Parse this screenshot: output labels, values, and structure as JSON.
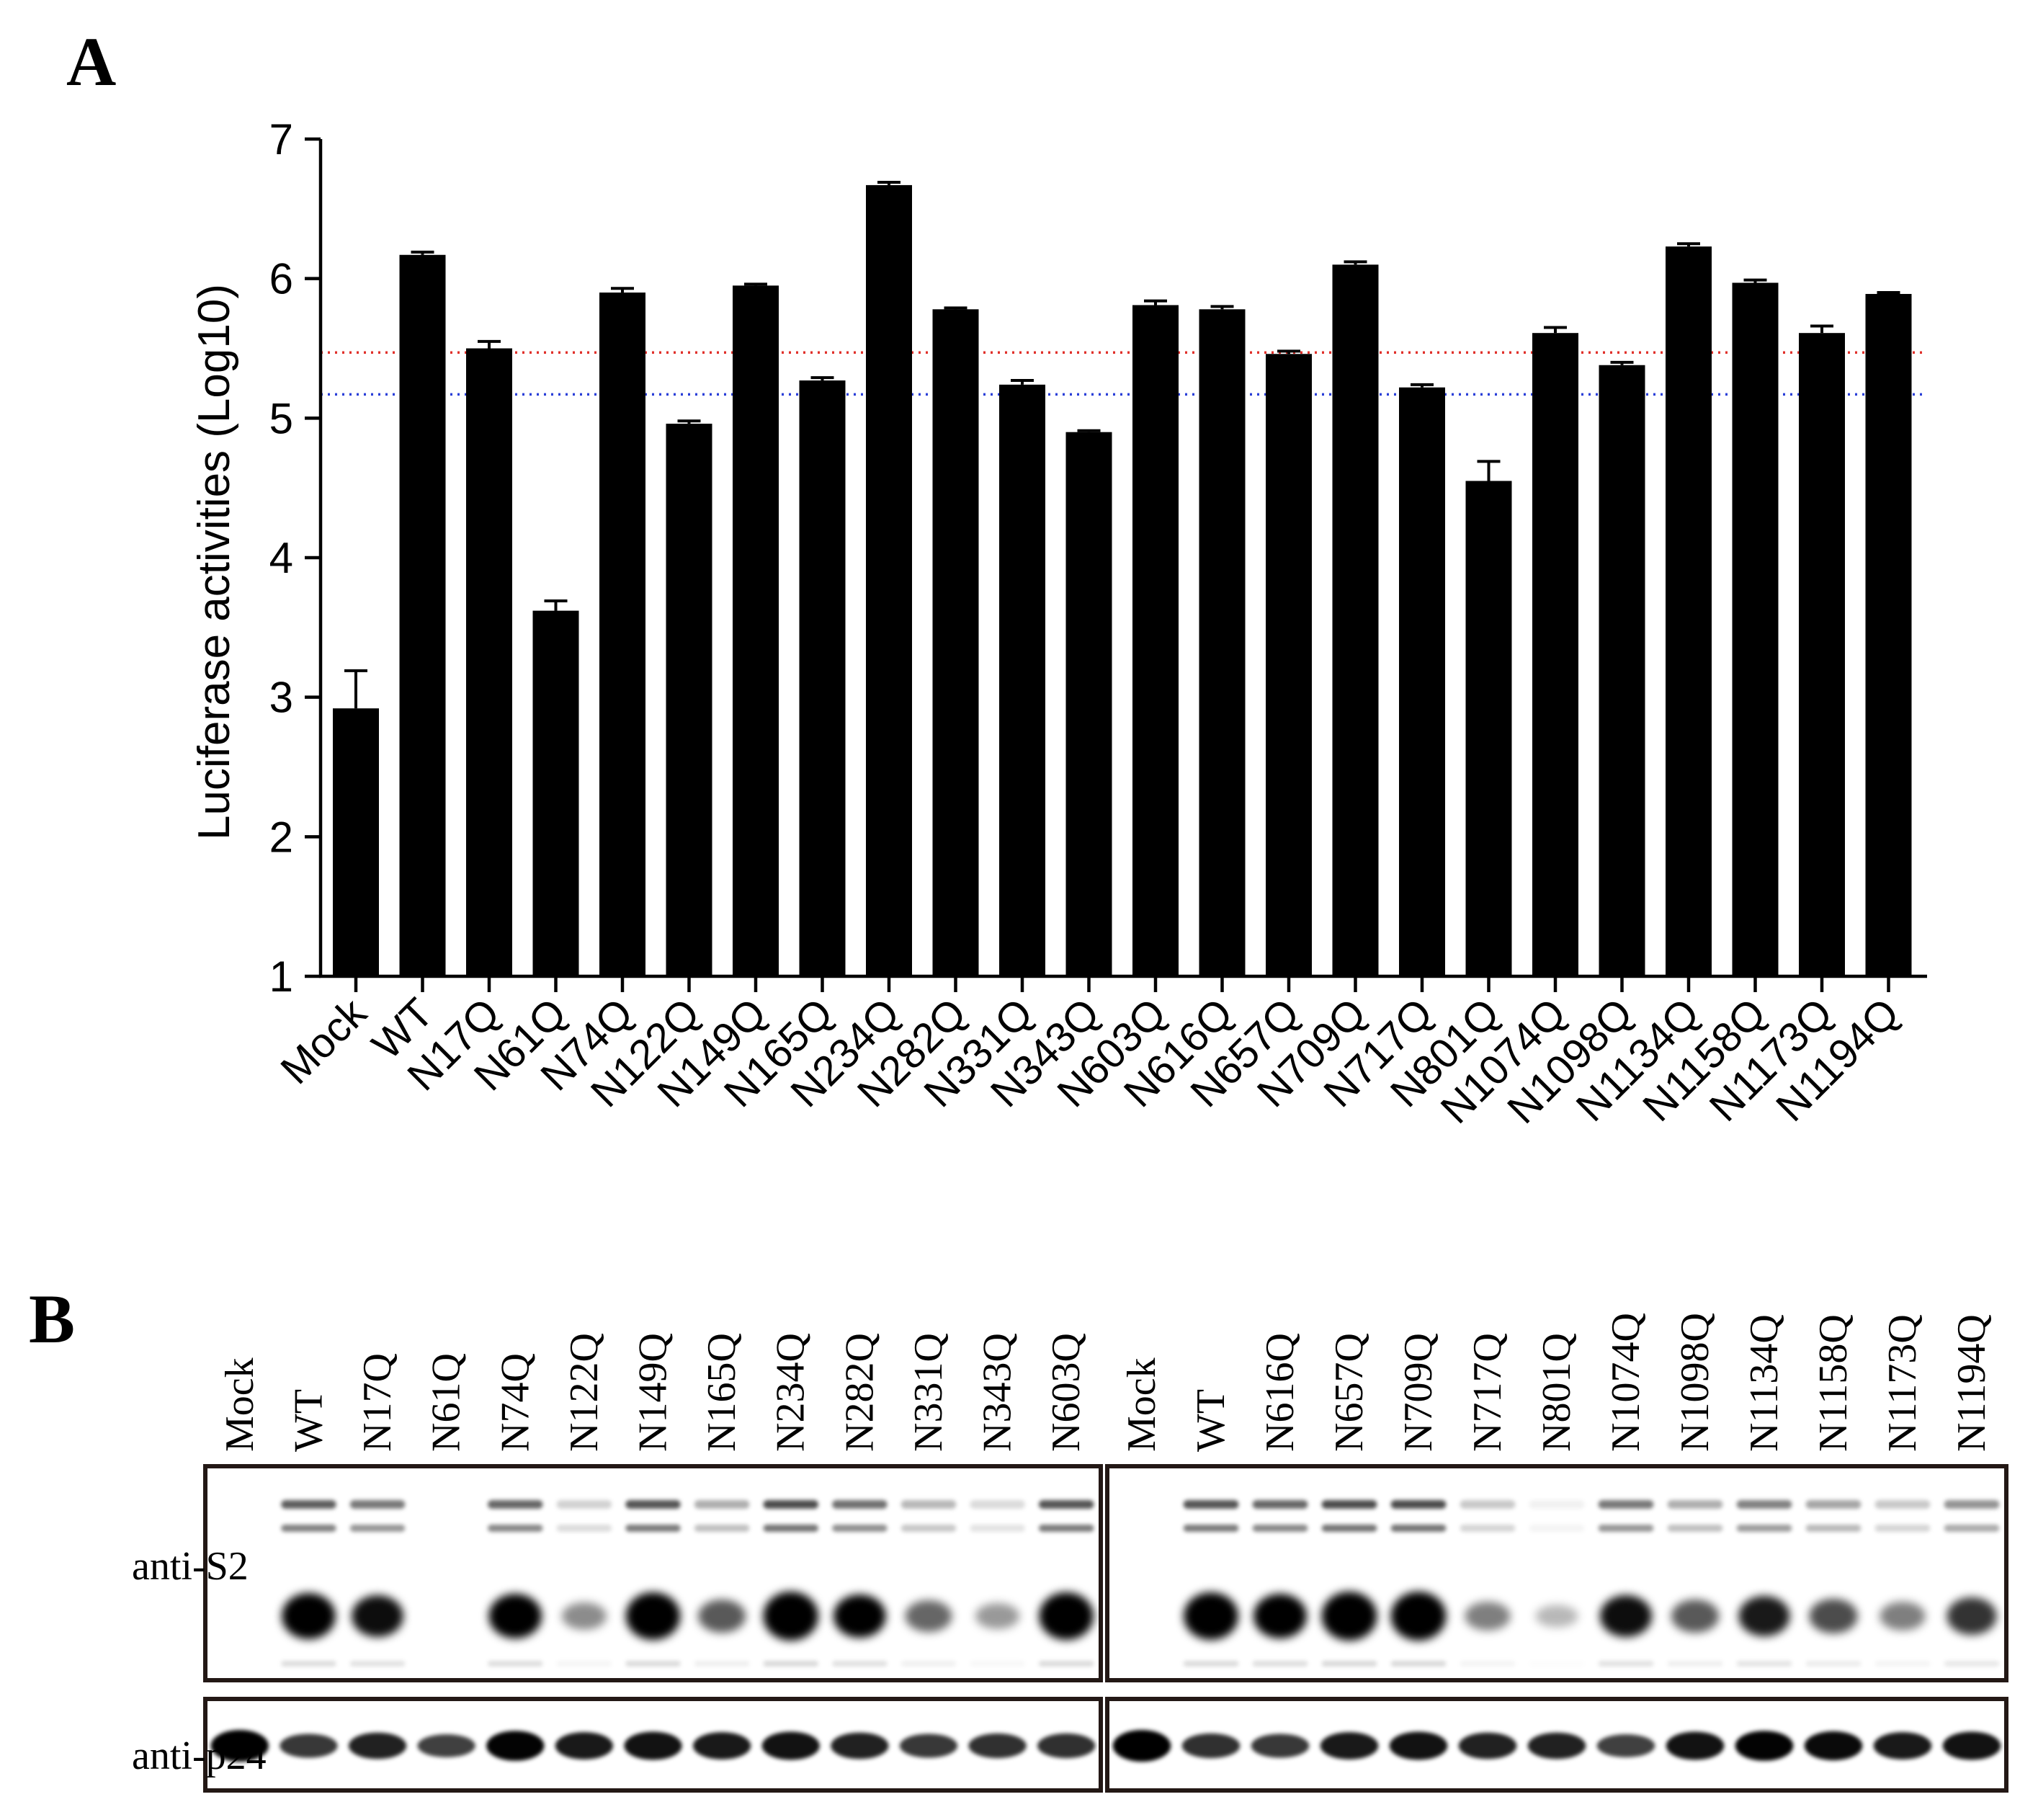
{
  "panels": {
    "a_label": "A",
    "b_label": "B"
  },
  "chart_data": {
    "type": "bar",
    "title": "",
    "xlabel": "",
    "ylabel": "Luciferase activities (Log10)",
    "ylim": [
      1,
      7
    ],
    "yticks": [
      "1",
      "2",
      "3",
      "4",
      "5",
      "6",
      "7"
    ],
    "categories": [
      "Mock",
      "WT",
      "N17Q",
      "N61Q",
      "N74Q",
      "N122Q",
      "N149Q",
      "N165Q",
      "N234Q",
      "N282Q",
      "N331Q",
      "N343Q",
      "N603Q",
      "N616Q",
      "N657Q",
      "N709Q",
      "N717Q",
      "N801Q",
      "N1074Q",
      "N1098Q",
      "N1134Q",
      "N1158Q",
      "N1173Q",
      "N1194Q"
    ],
    "values": [
      2.92,
      6.17,
      5.5,
      3.62,
      5.9,
      4.96,
      5.95,
      5.27,
      6.67,
      5.78,
      5.24,
      4.9,
      5.81,
      5.78,
      5.46,
      6.1,
      5.22,
      4.55,
      5.61,
      5.38,
      6.23,
      5.97,
      5.61,
      5.89
    ],
    "errors": [
      0.27,
      0.02,
      0.05,
      0.07,
      0.03,
      0.02,
      0.01,
      0.02,
      0.02,
      0.01,
      0.03,
      0.01,
      0.03,
      0.02,
      0.02,
      0.02,
      0.02,
      0.14,
      0.04,
      0.02,
      0.02,
      0.02,
      0.05,
      0.01
    ],
    "reference_lines": [
      {
        "value": 5.47,
        "color": "#e0302a",
        "style": "dotted"
      },
      {
        "value": 5.17,
        "color": "#2a3fd8",
        "style": "dotted"
      }
    ],
    "bar_color": "#000000"
  },
  "blot": {
    "left_lanes": [
      "Mock",
      "WT",
      "N17Q",
      "N61Q",
      "N74Q",
      "N122Q",
      "N149Q",
      "N165Q",
      "N234Q",
      "N282Q",
      "N331Q",
      "N343Q",
      "N603Q"
    ],
    "right_lanes": [
      "Mock",
      "WT",
      "N616Q",
      "N657Q",
      "N709Q",
      "N717Q",
      "N801Q",
      "N1074Q",
      "N1098Q",
      "N1134Q",
      "N1158Q",
      "N1173Q",
      "N1194Q"
    ],
    "s2_label": "anti-S2",
    "p24_label": "anti-p24",
    "left_s2_intensity": [
      0,
      0.9,
      0.75,
      0,
      0.85,
      0.25,
      0.95,
      0.45,
      1.0,
      0.8,
      0.4,
      0.2,
      0.95
    ],
    "right_s2_intensity": [
      0,
      0.95,
      0.85,
      1.0,
      1.0,
      0.3,
      0.08,
      0.75,
      0.45,
      0.7,
      0.5,
      0.3,
      0.6
    ],
    "left_p24_intensity": [
      1.0,
      0.55,
      0.7,
      0.5,
      0.9,
      0.75,
      0.8,
      0.75,
      0.8,
      0.7,
      0.55,
      0.6,
      0.6
    ],
    "right_p24_intensity": [
      1.0,
      0.6,
      0.55,
      0.75,
      0.8,
      0.7,
      0.7,
      0.5,
      0.8,
      0.9,
      0.85,
      0.75,
      0.8
    ]
  }
}
